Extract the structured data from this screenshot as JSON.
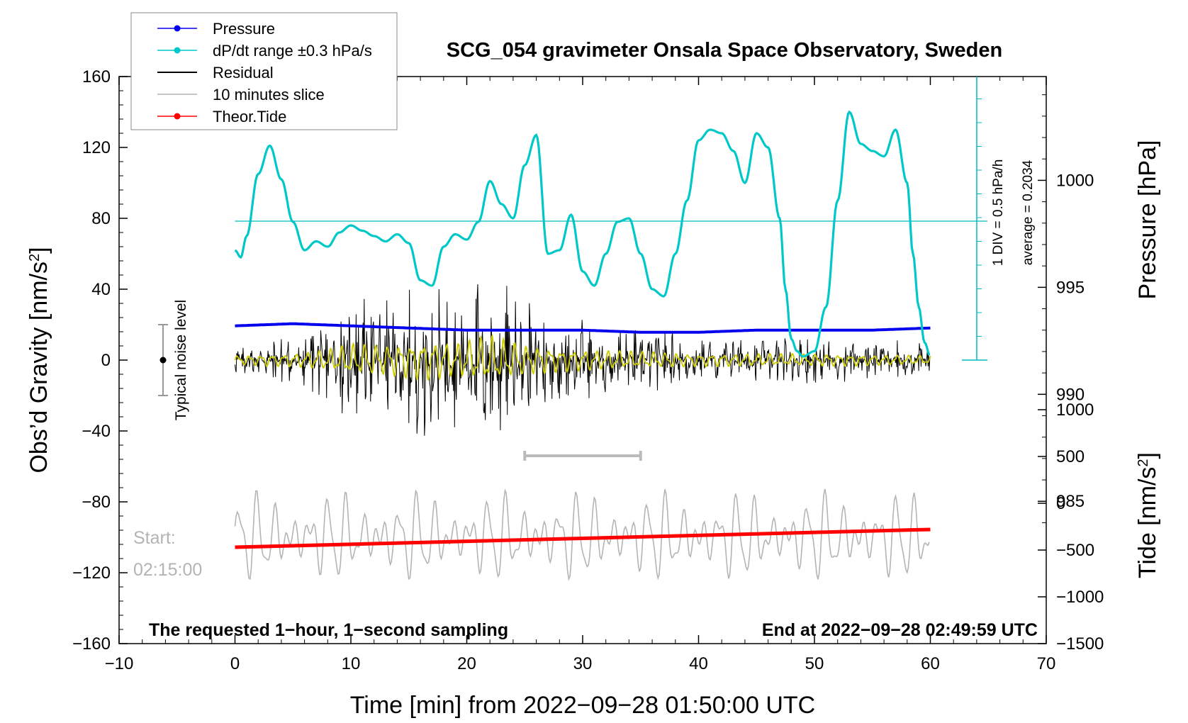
{
  "chart_data": {
    "type": "line",
    "title": "SCG_054 gravimeter Onsala Space Observatory, Sweden",
    "xlabel": "Time [min] from 2022−09−28 01:50:00 UTC",
    "ylabel_left": "Obs’d Gravity [nm/s",
    "ylabel_left_sup": "2",
    "ylabel_left_close": "]",
    "ylabel_right_pressure": "Pressure [hPa]",
    "ylabel_right_tide": "Tide [nm/s",
    "ylabel_right_tide_sup": "2",
    "ylabel_right_tide_close": "]",
    "xlim": [
      -10,
      70
    ],
    "ylim_left": [
      -160,
      160
    ],
    "x_ticks": [
      -10,
      0,
      10,
      20,
      30,
      40,
      50,
      60,
      70
    ],
    "x_tick_labels": [
      "−10",
      "0",
      "10",
      "20",
      "30",
      "40",
      "50",
      "60",
      "70"
    ],
    "y_left_ticks": [
      -160,
      -120,
      -80,
      -40,
      0,
      40,
      80,
      120,
      160
    ],
    "y_left_tick_labels": [
      "−160",
      "−120",
      "−80",
      "−40",
      "0",
      "40",
      "80",
      "120",
      "160"
    ],
    "pressure_axis": {
      "ticks": [
        985,
        990,
        995,
        1000
      ],
      "tick_labels": [
        "985",
        "990",
        "995",
        "1000"
      ],
      "range": [
        978.35,
        1004.85
      ]
    },
    "tide_axis": {
      "ticks": [
        -1500,
        -1000,
        -500,
        0,
        500,
        1000
      ],
      "tick_labels": [
        "−1500",
        "−1000",
        "−500",
        "0",
        "500",
        "1000"
      ],
      "range": [
        -1500,
        1000
      ]
    },
    "legend": {
      "placement": "top-left",
      "items": [
        {
          "label": "Pressure",
          "color": "#0000ee",
          "marker": true
        },
        {
          "label": "dP/dt range ±0.3 hPa/s",
          "color": "#00c8c8",
          "marker": true
        },
        {
          "label": "Residual",
          "color": "#000000",
          "marker": false
        },
        {
          "label": "10 minutes slice",
          "color": "#b4b4b4",
          "marker": false
        },
        {
          "label": "Theor.Tide",
          "color": "#ff0000",
          "marker": true
        }
      ]
    },
    "annotations": {
      "noise_label": "Typical noise level",
      "noise_level_range": [
        -20,
        20
      ],
      "dpdt_div_label": "1 DIV = 0.5 hPa/h",
      "dpdt_average_label": "average = 0.2034",
      "start_label": "Start:",
      "start_time": "02:15:00",
      "bottom_left": "The requested 1−hour, 1−second sampling",
      "bottom_right": "End at 2022−09−28 02:49:59 UTC",
      "slice_bar_minutes": [
        25,
        35
      ]
    },
    "colors": {
      "pressure": "#0000ee",
      "dpdt": "#00c8c8",
      "residual": "#000000",
      "slice": "#b4b4b4",
      "tide": "#ff0000",
      "smoothed_residual": "#cccc00"
    },
    "series": {
      "pressure_hPa": {
        "x": [
          0,
          5,
          10,
          15,
          20,
          25,
          30,
          35,
          40,
          45,
          50,
          55,
          60
        ],
        "y": [
          993.2,
          993.3,
          993.2,
          993.1,
          993.0,
          993.0,
          993.0,
          992.9,
          992.9,
          993.0,
          993.0,
          993.0,
          993.1
        ]
      },
      "dpdt_scaled_gravity_units": {
        "x": [
          0,
          0.5,
          1,
          2,
          3,
          4,
          5,
          6,
          7,
          8,
          9,
          10,
          11,
          12,
          13,
          14,
          15,
          16,
          17,
          18,
          19,
          20,
          21,
          22,
          23,
          24,
          25,
          26,
          27,
          28,
          29,
          30,
          31,
          32,
          33,
          34,
          35,
          36,
          37,
          38,
          39,
          40,
          41,
          42,
          43,
          44,
          45,
          46,
          47,
          47.5,
          48,
          48.5,
          49,
          50,
          51,
          52,
          53,
          54,
          55,
          56,
          57,
          58,
          58.5,
          59,
          59.5,
          60
        ],
        "y": [
          62,
          58,
          70,
          105,
          121,
          102,
          78,
          62,
          67,
          64,
          72,
          76,
          73,
          70,
          67,
          71,
          66,
          45,
          42,
          64,
          71,
          68,
          78,
          101,
          88,
          80,
          110,
          127,
          60,
          62,
          82,
          50,
          42,
          60,
          78,
          80,
          60,
          40,
          36,
          60,
          90,
          124,
          130,
          128,
          118,
          100,
          128,
          120,
          80,
          40,
          12,
          5,
          2,
          5,
          30,
          90,
          140,
          122,
          118,
          115,
          130,
          100,
          60,
          30,
          10,
          2
        ]
      },
      "tide_nm_s2": {
        "x": [
          0,
          60
        ],
        "y": [
          -470,
          -280
        ]
      },
      "residual_envelope": {
        "x": [
          0,
          5,
          8,
          10,
          13,
          15,
          17,
          19,
          21,
          22,
          23,
          25,
          28,
          32,
          36,
          40,
          45,
          50,
          55,
          60
        ],
        "amplitude": [
          10,
          15,
          24,
          36,
          34,
          40,
          45,
          38,
          50,
          55,
          48,
          34,
          26,
          22,
          18,
          14,
          14,
          14,
          12,
          10
        ]
      },
      "slice_gravity_units": {
        "x_range": [
          0,
          60
        ],
        "center": -100,
        "amplitude": 18
      }
    }
  }
}
